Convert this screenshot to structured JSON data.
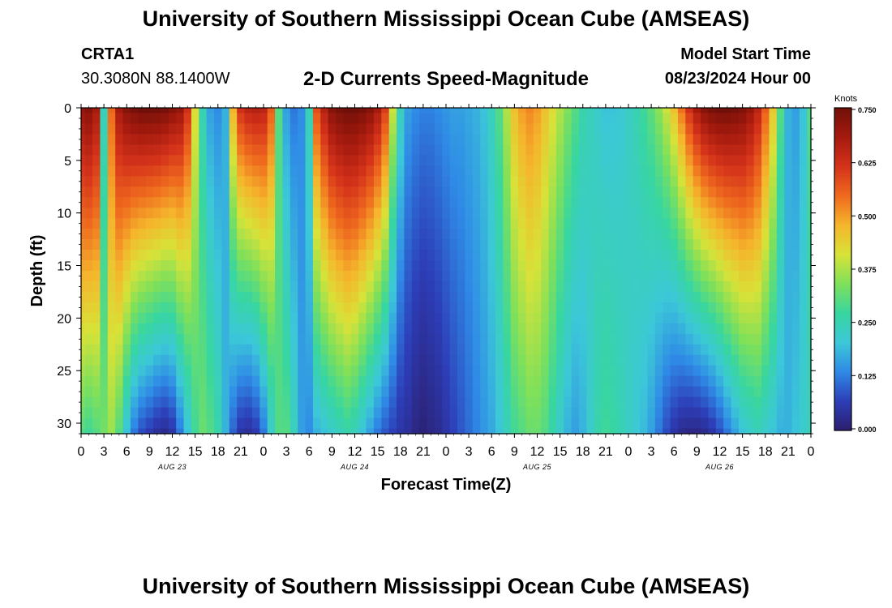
{
  "header": {
    "title": "University of Southern Mississippi Ocean Cube (AMSEAS)",
    "station": "CRTA1",
    "coords": "30.3080N  88.1400W",
    "subtitle": "2-D Currents Speed-Magnitude",
    "model_label": "Model Start Time",
    "model_time": "08/23/2024 Hour 00"
  },
  "footer": {
    "title": "University of Southern Mississippi Ocean Cube (AMSEAS)"
  },
  "colorbar": {
    "unit": "Knots",
    "ticks": [
      "0.750",
      "0.625",
      "0.500",
      "0.375",
      "0.250",
      "0.125",
      "0.000"
    ],
    "colors": [
      "#2b1e6e",
      "#2d3eb8",
      "#2f8ae6",
      "#3cc8d8",
      "#38d6a0",
      "#7fe05a",
      "#d8e238",
      "#f5b52c",
      "#ef6a1e",
      "#d4321a",
      "#a51a0e",
      "#701008"
    ]
  },
  "chart_data": {
    "type": "heatmap",
    "title": "2-D Currents Speed-Magnitude",
    "xlabel": "Forecast Time(Z)",
    "ylabel": "Depth (ft)",
    "x_range_hours": [
      0,
      96
    ],
    "ylim": [
      0,
      31
    ],
    "y_ticks": [
      0,
      5,
      10,
      15,
      20,
      25,
      30
    ],
    "x_tick_hours": [
      0,
      3,
      6,
      9,
      12,
      15,
      18,
      21,
      24,
      27,
      30,
      33,
      36,
      39,
      42,
      45,
      48,
      51,
      54,
      57,
      60,
      63,
      66,
      69,
      72,
      75,
      78,
      81,
      84,
      87,
      90,
      93,
      96
    ],
    "x_tick_labels": [
      "0",
      "3",
      "6",
      "9",
      "12",
      "15",
      "18",
      "21",
      "0",
      "3",
      "6",
      "9",
      "12",
      "15",
      "18",
      "21",
      "0",
      "3",
      "6",
      "9",
      "12",
      "15",
      "18",
      "21",
      "0",
      "3",
      "6",
      "9",
      "12",
      "15",
      "18",
      "21",
      "0"
    ],
    "day_labels": [
      {
        "text": "AUG 23",
        "hour": 12
      },
      {
        "text": "AUG 24",
        "hour": 36
      },
      {
        "text": "AUG 25",
        "hour": 60
      },
      {
        "text": "AUG 26",
        "hour": 84
      }
    ],
    "colorbar_range": [
      0,
      0.75
    ],
    "colorbar_units": "Knots",
    "grid_resolution": {
      "time_steps": 97,
      "depth_levels": 32
    },
    "surface_speed_knots": [
      0.7,
      0.72,
      0.68,
      0.24,
      0.55,
      0.68,
      0.72,
      0.74,
      0.75,
      0.75,
      0.75,
      0.74,
      0.72,
      0.7,
      0.62,
      0.42,
      0.25,
      0.16,
      0.14,
      0.18,
      0.48,
      0.62,
      0.65,
      0.66,
      0.65,
      0.56,
      0.3,
      0.16,
      0.12,
      0.14,
      0.25,
      0.58,
      0.66,
      0.72,
      0.74,
      0.75,
      0.75,
      0.74,
      0.72,
      0.68,
      0.6,
      0.4,
      0.24,
      0.16,
      0.14,
      0.13,
      0.13,
      0.14,
      0.15,
      0.16,
      0.16,
      0.17,
      0.18,
      0.2,
      0.24,
      0.3,
      0.38,
      0.46,
      0.5,
      0.52,
      0.5,
      0.46,
      0.42,
      0.38,
      0.34,
      0.3,
      0.26,
      0.24,
      0.22,
      0.2,
      0.2,
      0.21,
      0.23,
      0.25,
      0.28,
      0.31,
      0.35,
      0.4,
      0.46,
      0.54,
      0.62,
      0.68,
      0.72,
      0.74,
      0.75,
      0.75,
      0.74,
      0.73,
      0.7,
      0.65,
      0.56,
      0.45,
      0.3,
      0.18,
      0.16,
      0.2,
      0.3
    ],
    "bottom_speed_knots": [
      0.3,
      0.28,
      0.3,
      0.33,
      0.36,
      0.3,
      0.2,
      0.12,
      0.08,
      0.06,
      0.04,
      0.03,
      0.05,
      0.12,
      0.2,
      0.28,
      0.32,
      0.3,
      0.26,
      0.18,
      0.1,
      0.05,
      0.04,
      0.06,
      0.12,
      0.22,
      0.3,
      0.3,
      0.24,
      0.16,
      0.14,
      0.18,
      0.2,
      0.22,
      0.24,
      0.26,
      0.24,
      0.2,
      0.16,
      0.12,
      0.09,
      0.07,
      0.05,
      0.04,
      0.02,
      0.01,
      0.02,
      0.03,
      0.05,
      0.07,
      0.09,
      0.11,
      0.13,
      0.15,
      0.17,
      0.2,
      0.24,
      0.28,
      0.3,
      0.32,
      0.32,
      0.3,
      0.26,
      0.22,
      0.18,
      0.16,
      0.18,
      0.22,
      0.26,
      0.28,
      0.27,
      0.25,
      0.23,
      0.21,
      0.19,
      0.16,
      0.12,
      0.08,
      0.05,
      0.03,
      0.02,
      0.02,
      0.03,
      0.05,
      0.08,
      0.12,
      0.16,
      0.2,
      0.22,
      0.24,
      0.22,
      0.2,
      0.18,
      0.18,
      0.2,
      0.22,
      0.24
    ]
  }
}
